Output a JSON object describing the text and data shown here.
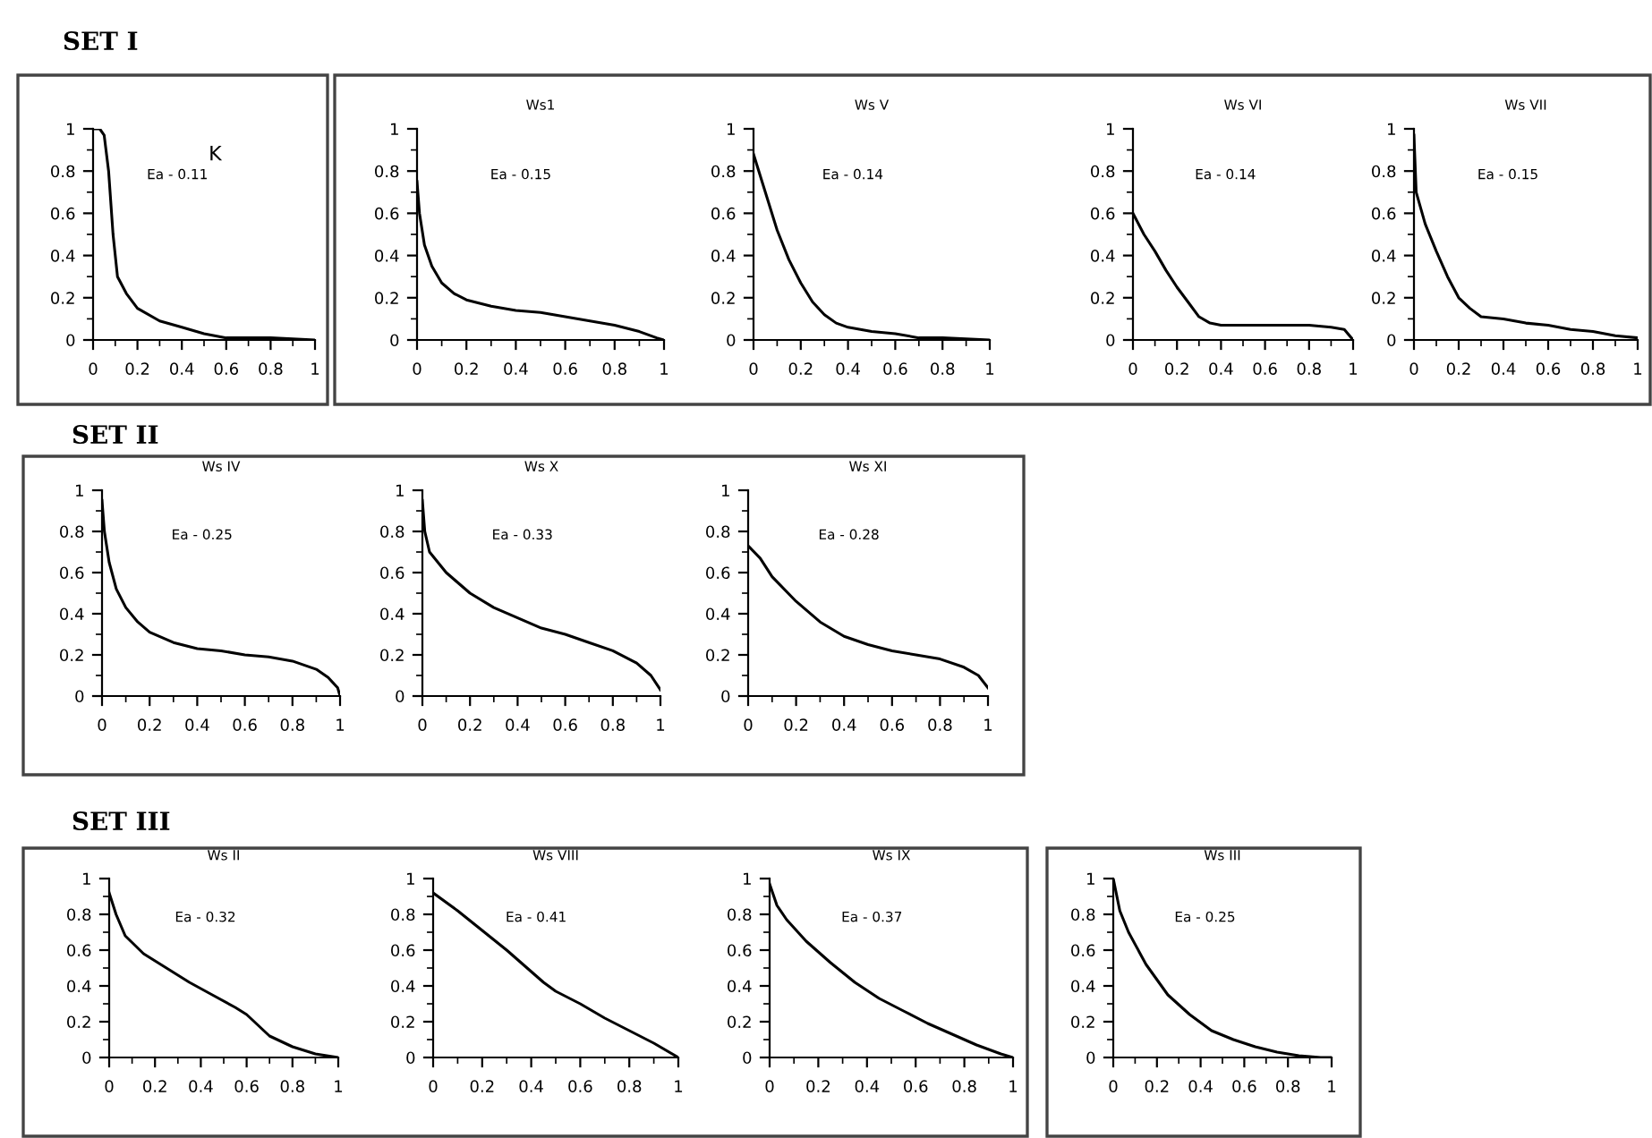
{
  "chart_data": [
    {
      "type": "line",
      "title": "K",
      "annotations": [
        "Ea - 0.11",
        "SET I"
      ],
      "xlim": [
        0,
        1
      ],
      "ylim": [
        0,
        1
      ],
      "xticks": [
        0,
        0.2,
        0.4,
        0.6,
        0.8,
        1
      ],
      "yticks": [
        0,
        0.2,
        0.4,
        0.6,
        0.8,
        1
      ],
      "x": [
        0,
        0.03,
        0.05,
        0.07,
        0.09,
        0.11,
        0.15,
        0.2,
        0.3,
        0.4,
        0.5,
        0.6,
        0.8,
        1
      ],
      "series": [
        {
          "color": "#000000",
          "values": [
            1,
            1,
            0.97,
            0.8,
            0.5,
            0.3,
            0.22,
            0.15,
            0.09,
            0.06,
            0.03,
            0.01,
            0.01,
            0
          ]
        }
      ]
    },
    {
      "type": "line",
      "title": "Ws1",
      "annotations": [
        "Ea - 0.15"
      ],
      "xlim": [
        0,
        1
      ],
      "ylim": [
        0,
        1
      ],
      "xticks": [
        0,
        0.2,
        0.4,
        0.6,
        0.8,
        1
      ],
      "yticks": [
        0,
        0.2,
        0.4,
        0.6,
        0.8,
        1
      ],
      "x": [
        0,
        0.01,
        0.03,
        0.06,
        0.1,
        0.15,
        0.2,
        0.3,
        0.4,
        0.5,
        0.6,
        0.7,
        0.8,
        0.9,
        0.97,
        1
      ],
      "series": [
        {
          "color": "#000000",
          "values": [
            0.75,
            0.6,
            0.45,
            0.35,
            0.27,
            0.22,
            0.19,
            0.16,
            0.14,
            0.13,
            0.11,
            0.09,
            0.07,
            0.04,
            0.01,
            0
          ]
        }
      ]
    },
    {
      "type": "line",
      "title": "Ws V",
      "annotations": [
        "Ea - 0.14"
      ],
      "xlim": [
        0,
        1
      ],
      "ylim": [
        0,
        1
      ],
      "xticks": [
        0,
        0.2,
        0.4,
        0.6,
        0.8,
        1
      ],
      "yticks": [
        0,
        0.2,
        0.4,
        0.6,
        0.8,
        1
      ],
      "x": [
        0,
        0.05,
        0.1,
        0.15,
        0.2,
        0.25,
        0.3,
        0.35,
        0.4,
        0.5,
        0.6,
        0.7,
        0.8,
        1
      ],
      "series": [
        {
          "color": "#000000",
          "values": [
            0.88,
            0.7,
            0.52,
            0.38,
            0.27,
            0.18,
            0.12,
            0.08,
            0.06,
            0.04,
            0.03,
            0.01,
            0.01,
            0
          ]
        }
      ]
    },
    {
      "type": "line",
      "title": "Ws VI",
      "annotations": [
        "Ea - 0.14"
      ],
      "xlim": [
        0,
        1
      ],
      "ylim": [
        0,
        1
      ],
      "xticks": [
        0,
        0.2,
        0.4,
        0.6,
        0.8,
        1
      ],
      "yticks": [
        0,
        0.2,
        0.4,
        0.6,
        0.8,
        1
      ],
      "x": [
        0,
        0.05,
        0.1,
        0.15,
        0.2,
        0.25,
        0.3,
        0.35,
        0.4,
        0.6,
        0.8,
        0.9,
        0.96,
        1
      ],
      "series": [
        {
          "color": "#000000",
          "values": [
            0.6,
            0.5,
            0.42,
            0.33,
            0.25,
            0.18,
            0.11,
            0.08,
            0.07,
            0.07,
            0.07,
            0.06,
            0.05,
            0
          ]
        }
      ]
    },
    {
      "type": "line",
      "title": "Ws VII",
      "annotations": [
        "Ea - 0.15"
      ],
      "xlim": [
        0,
        1
      ],
      "ylim": [
        0,
        1
      ],
      "xticks": [
        0,
        0.2,
        0.4,
        0.6,
        0.8,
        1
      ],
      "yticks": [
        0,
        0.2,
        0.4,
        0.6,
        0.8,
        1
      ],
      "x": [
        0,
        0.01,
        0.05,
        0.1,
        0.15,
        0.2,
        0.25,
        0.3,
        0.4,
        0.5,
        0.6,
        0.7,
        0.8,
        0.9,
        1
      ],
      "series": [
        {
          "color": "#000000",
          "values": [
            0.97,
            0.7,
            0.55,
            0.42,
            0.3,
            0.2,
            0.15,
            0.11,
            0.1,
            0.08,
            0.07,
            0.05,
            0.04,
            0.02,
            0.01
          ]
        }
      ]
    },
    {
      "type": "line",
      "title": "Ws IV",
      "annotations": [
        "Ea - 0.25",
        "SET II"
      ],
      "xlim": [
        0,
        1
      ],
      "ylim": [
        0,
        1
      ],
      "xticks": [
        0,
        0.2,
        0.4,
        0.6,
        0.8,
        1
      ],
      "yticks": [
        0,
        0.2,
        0.4,
        0.6,
        0.8,
        1
      ],
      "x": [
        0,
        0.01,
        0.03,
        0.06,
        0.1,
        0.15,
        0.2,
        0.3,
        0.4,
        0.5,
        0.6,
        0.7,
        0.8,
        0.9,
        0.95,
        0.99,
        1
      ],
      "series": [
        {
          "color": "#000000",
          "values": [
            0.95,
            0.8,
            0.65,
            0.52,
            0.43,
            0.36,
            0.31,
            0.26,
            0.23,
            0.22,
            0.2,
            0.19,
            0.17,
            0.13,
            0.09,
            0.04,
            0
          ]
        }
      ]
    },
    {
      "type": "line",
      "title": "Ws X",
      "annotations": [
        "Ea - 0.33"
      ],
      "xlim": [
        0,
        1
      ],
      "ylim": [
        0,
        1
      ],
      "xticks": [
        0,
        0.2,
        0.4,
        0.6,
        0.8,
        1
      ],
      "yticks": [
        0,
        0.2,
        0.4,
        0.6,
        0.8,
        1
      ],
      "x": [
        0,
        0.01,
        0.03,
        0.1,
        0.2,
        0.3,
        0.4,
        0.5,
        0.6,
        0.7,
        0.8,
        0.9,
        0.96,
        1
      ],
      "series": [
        {
          "color": "#000000",
          "values": [
            0.95,
            0.8,
            0.7,
            0.6,
            0.5,
            0.43,
            0.38,
            0.33,
            0.3,
            0.26,
            0.22,
            0.16,
            0.1,
            0.03
          ]
        }
      ]
    },
    {
      "type": "line",
      "title": "Ws XI",
      "annotations": [
        "Ea - 0.28"
      ],
      "xlim": [
        0,
        1
      ],
      "ylim": [
        0,
        1
      ],
      "xticks": [
        0,
        0.2,
        0.4,
        0.6,
        0.8,
        1
      ],
      "yticks": [
        0,
        0.2,
        0.4,
        0.6,
        0.8,
        1
      ],
      "x": [
        0,
        0.05,
        0.1,
        0.2,
        0.3,
        0.4,
        0.5,
        0.6,
        0.7,
        0.8,
        0.9,
        0.96,
        1
      ],
      "series": [
        {
          "color": "#000000",
          "values": [
            0.73,
            0.67,
            0.58,
            0.46,
            0.36,
            0.29,
            0.25,
            0.22,
            0.2,
            0.18,
            0.14,
            0.1,
            0.04
          ]
        }
      ]
    },
    {
      "type": "line",
      "title": "Ws II",
      "annotations": [
        "Ea - 0.32",
        "SET III"
      ],
      "xlim": [
        0,
        1
      ],
      "ylim": [
        0,
        1
      ],
      "xticks": [
        0,
        0.2,
        0.4,
        0.6,
        0.8,
        1
      ],
      "yticks": [
        0,
        0.2,
        0.4,
        0.6,
        0.8,
        1
      ],
      "x": [
        0,
        0.03,
        0.07,
        0.15,
        0.25,
        0.35,
        0.45,
        0.55,
        0.6,
        0.65,
        0.7,
        0.8,
        0.9,
        1
      ],
      "series": [
        {
          "color": "#000000",
          "values": [
            0.92,
            0.8,
            0.68,
            0.58,
            0.5,
            0.42,
            0.35,
            0.28,
            0.24,
            0.18,
            0.12,
            0.06,
            0.02,
            0
          ]
        }
      ]
    },
    {
      "type": "line",
      "title": "Ws VIII",
      "annotations": [
        "Ea - 0.41"
      ],
      "xlim": [
        0,
        1
      ],
      "ylim": [
        0,
        1
      ],
      "xticks": [
        0,
        0.2,
        0.4,
        0.6,
        0.8,
        1
      ],
      "yticks": [
        0,
        0.2,
        0.4,
        0.6,
        0.8,
        1
      ],
      "x": [
        0,
        0.1,
        0.2,
        0.3,
        0.4,
        0.45,
        0.5,
        0.6,
        0.7,
        0.8,
        0.9,
        1
      ],
      "series": [
        {
          "color": "#000000",
          "values": [
            0.92,
            0.82,
            0.71,
            0.6,
            0.48,
            0.42,
            0.37,
            0.3,
            0.22,
            0.15,
            0.08,
            0
          ]
        }
      ]
    },
    {
      "type": "line",
      "title": "Ws IX",
      "annotations": [
        "Ea - 0.37"
      ],
      "xlim": [
        0,
        1
      ],
      "ylim": [
        0,
        1
      ],
      "xticks": [
        0,
        0.2,
        0.4,
        0.6,
        0.8,
        1
      ],
      "yticks": [
        0,
        0.2,
        0.4,
        0.6,
        0.8,
        1
      ],
      "x": [
        0,
        0.03,
        0.07,
        0.15,
        0.25,
        0.35,
        0.45,
        0.55,
        0.65,
        0.75,
        0.85,
        0.95,
        1
      ],
      "series": [
        {
          "color": "#000000",
          "values": [
            0.97,
            0.85,
            0.77,
            0.65,
            0.53,
            0.42,
            0.33,
            0.26,
            0.19,
            0.13,
            0.07,
            0.02,
            0
          ]
        }
      ]
    },
    {
      "type": "line",
      "title": "Ws III",
      "annotations": [
        "Ea - 0.25"
      ],
      "xlim": [
        0,
        1
      ],
      "ylim": [
        0,
        1
      ],
      "xticks": [
        0,
        0.2,
        0.4,
        0.6,
        0.8,
        1
      ],
      "yticks": [
        0,
        0.2,
        0.4,
        0.6,
        0.8,
        1
      ],
      "x": [
        0,
        0.03,
        0.07,
        0.15,
        0.25,
        0.35,
        0.45,
        0.55,
        0.65,
        0.75,
        0.85,
        0.95,
        1
      ],
      "series": [
        {
          "color": "#000000",
          "values": [
            1,
            0.82,
            0.7,
            0.52,
            0.35,
            0.24,
            0.15,
            0.1,
            0.06,
            0.03,
            0.01,
            0,
            0
          ]
        }
      ]
    }
  ]
}
